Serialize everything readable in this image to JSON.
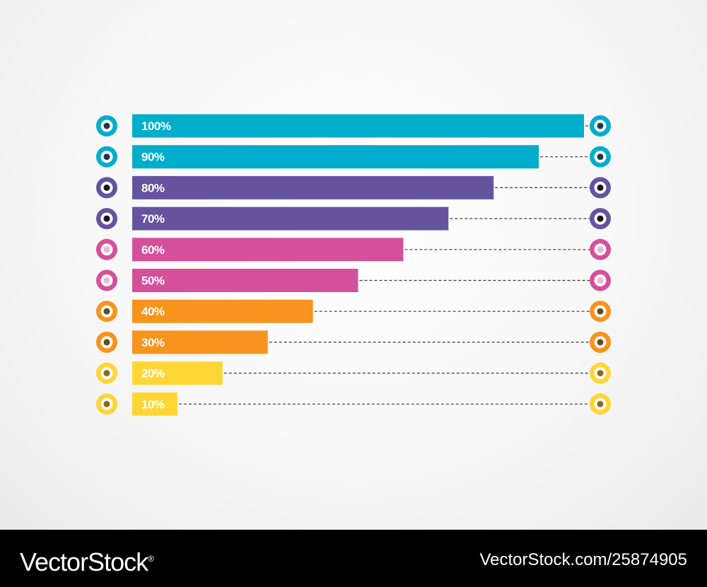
{
  "chart_data": {
    "type": "bar",
    "orientation": "horizontal",
    "categories": [
      "100%",
      "90%",
      "80%",
      "70%",
      "60%",
      "50%",
      "40%",
      "30%",
      "20%",
      "10%"
    ],
    "values": [
      100,
      90,
      80,
      70,
      60,
      50,
      40,
      30,
      20,
      10
    ],
    "xlim": [
      0,
      100
    ],
    "grid": false,
    "bar_colors": [
      "#00aecb",
      "#00aecb",
      "#66539e",
      "#66539e",
      "#d4509a",
      "#d4509a",
      "#f7941e",
      "#f7941e",
      "#ffd636",
      "#ffd636"
    ],
    "marker_inner_colors": [
      "#1b3a4b",
      "#1b3a4b",
      "#15151f",
      "#15151f",
      "#f0b4d8",
      "#f0b4d8",
      "#6b4a1a",
      "#6b4a1a",
      "#8a6d18",
      "#8a6d18"
    ],
    "dashed_leader_lines": true
  },
  "footer": {
    "brand": "VectorStock",
    "brand_mark": "®",
    "url": "VectorStock.com/25874905"
  }
}
